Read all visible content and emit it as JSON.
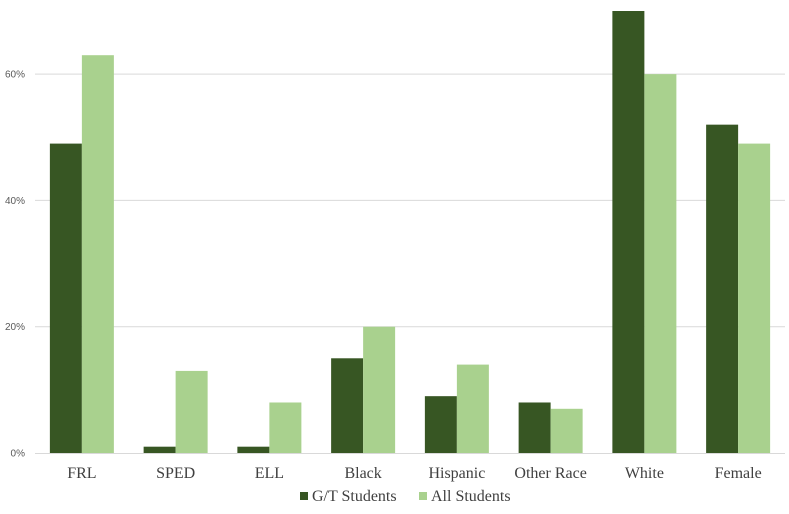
{
  "chart_data": {
    "type": "bar",
    "title": "",
    "xlabel": "",
    "ylabel": "",
    "categories": [
      "FRL",
      "SPED",
      "ELL",
      "Black",
      "Hispanic",
      "Other Race",
      "White",
      "Female"
    ],
    "series": [
      {
        "name": "G/T Students",
        "color": "#375623",
        "values": [
          49,
          1,
          1,
          15,
          9,
          8,
          70,
          52
        ]
      },
      {
        "name": "All Students",
        "color": "#A9D18E",
        "values": [
          63,
          13,
          8,
          20,
          14,
          7,
          60,
          49
        ]
      }
    ],
    "ylim": [
      0,
      70
    ],
    "yticks": [
      0,
      20,
      40,
      60
    ],
    "ytick_labels": [
      "0%",
      "20%",
      "40%",
      "60%"
    ],
    "grid": true,
    "legend_position": "bottom"
  }
}
